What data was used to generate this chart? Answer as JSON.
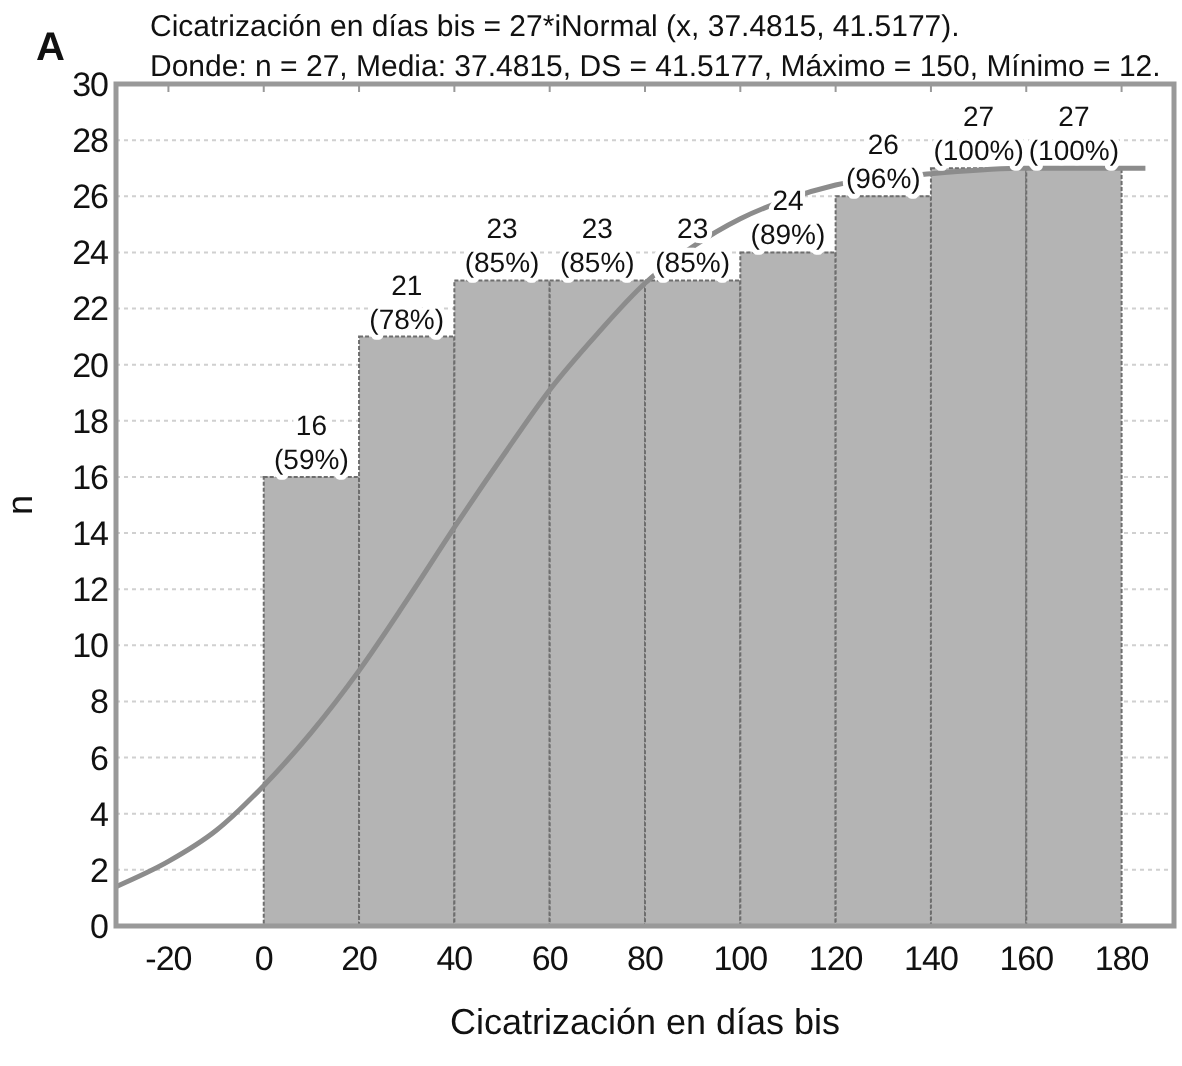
{
  "chart_data": {
    "type": "histogram",
    "title": "Cicatrización en días bis = 27*iNormal (x, 37.4815, 41.5177).",
    "subtitle": "Donde: n = 27,  Media: 37.4815, DS = 41.5177,  Máximo = 150, Mínimo = 12.",
    "annotations": [
      "A"
    ],
    "xlabel": "Cicatrización en días bis",
    "ylabel": "n",
    "series": [
      {
        "type": "histogram",
        "color": "#b4b4b4",
        "bins": [
          0,
          20,
          40,
          60,
          80,
          100,
          120,
          140,
          160,
          180
        ],
        "values": [
          16,
          21,
          23,
          23,
          23,
          24,
          26,
          27,
          27
        ],
        "value_labels": [
          "16 (59%)",
          "21 (78%)",
          "23 (85%)",
          "23 (85%)",
          "23 (85%)",
          "24 (89%)",
          "26 (96%)",
          "27 (100%)",
          "27 (100%)"
        ]
      },
      {
        "type": "line",
        "color": "#8c8c8c",
        "x": [
          -31,
          -20,
          -10,
          0,
          10,
          20,
          30,
          40,
          50,
          60,
          70,
          80,
          90,
          100,
          110,
          120,
          140,
          160,
          185
        ],
        "values": [
          1.4,
          2.3,
          3.4,
          5,
          6.9,
          9.1,
          11.6,
          14.2,
          16.7,
          19.1,
          21.1,
          22.9,
          24.2,
          25.2,
          25.9,
          26.4,
          26.8,
          27,
          27
        ]
      }
    ],
    "xlim": [
      -31,
      191
    ],
    "xticks": [
      -20,
      0,
      20,
      40,
      60,
      80,
      100,
      120,
      140,
      160,
      180
    ],
    "ylim": [
      0,
      30
    ],
    "yticks": [
      0,
      2,
      4,
      6,
      8,
      10,
      12,
      14,
      16,
      18,
      20,
      22,
      24,
      26,
      28,
      30
    ],
    "grid": "y"
  }
}
